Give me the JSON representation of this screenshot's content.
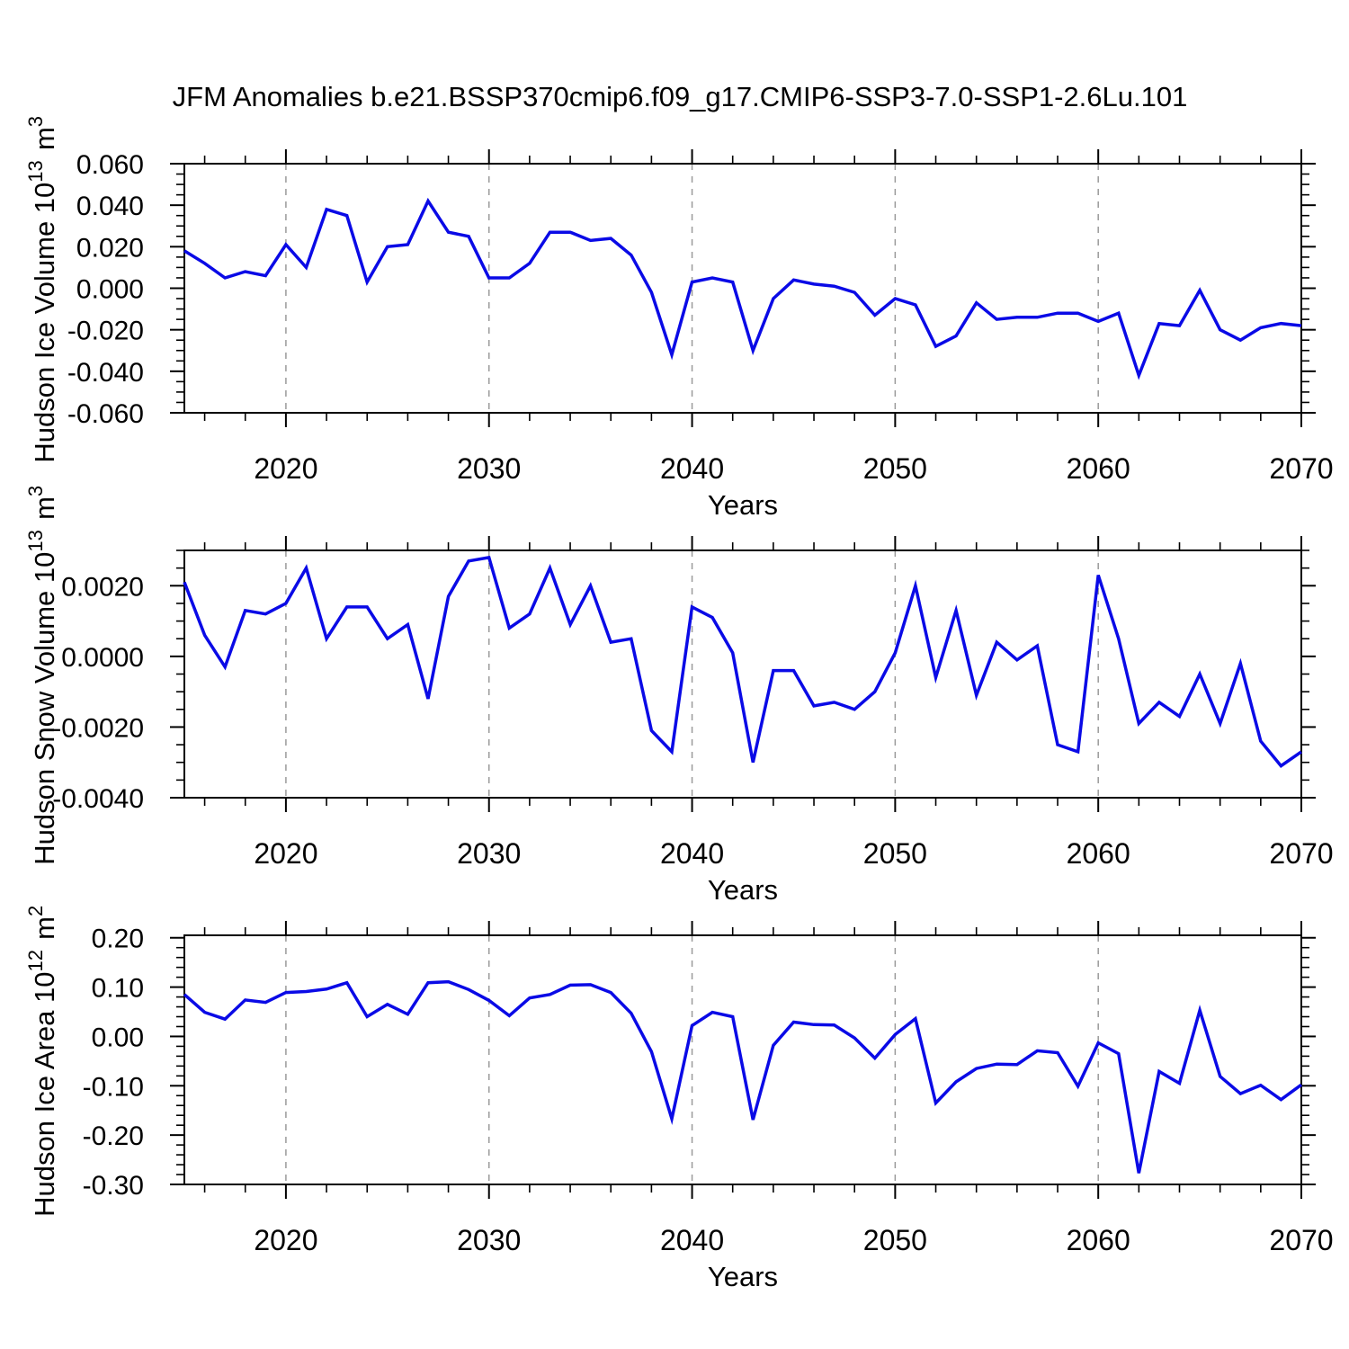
{
  "title": "JFM Anomalies b.e21.BSSP370cmip6.f09_g17.CMIP6-SSP3-7.0-SSP1-2.6Lu.101",
  "colors": {
    "line": "#0A0AE6",
    "grid": "#9a9a9a",
    "frame": "#000000",
    "background": "#ffffff"
  },
  "chart_data": {
    "type": "line",
    "x": [
      2015,
      2016,
      2017,
      2018,
      2019,
      2020,
      2021,
      2022,
      2023,
      2024,
      2025,
      2026,
      2027,
      2028,
      2029,
      2030,
      2031,
      2032,
      2033,
      2034,
      2035,
      2036,
      2037,
      2038,
      2039,
      2040,
      2041,
      2042,
      2043,
      2044,
      2045,
      2046,
      2047,
      2048,
      2049,
      2050,
      2051,
      2052,
      2053,
      2054,
      2055,
      2056,
      2057,
      2058,
      2059,
      2060,
      2061,
      2062,
      2063,
      2064,
      2065,
      2066,
      2067,
      2068,
      2069,
      2070
    ],
    "xlabel": "Years",
    "xlim": [
      2015,
      2070
    ],
    "xticks": [
      "2020",
      "2030",
      "2040",
      "2050",
      "2060",
      "2070"
    ],
    "xtick_years": [
      2020,
      2030,
      2040,
      2050,
      2060,
      2070
    ],
    "x_minor_step": 2,
    "grid_years": [
      2020,
      2030,
      2040,
      2050,
      2060
    ],
    "grid_style": "dashed-vertical",
    "legend": "none",
    "charts": [
      {
        "name": "hudson-ice-volume",
        "ylabel_text": "Hudson Ice Volume 10^13 m^3",
        "ylabel_parts": [
          {
            "text": "Hudson Ice Volume 10"
          },
          {
            "sup": "13"
          },
          {
            "text": " m"
          },
          {
            "sup": "3"
          }
        ],
        "ylim": [
          -0.06,
          0.06
        ],
        "y_minor_step": 0.005,
        "yticks": [
          {
            "v": 0.06,
            "label": "0.060"
          },
          {
            "v": 0.04,
            "label": "0.040"
          },
          {
            "v": 0.02,
            "label": "0.020"
          },
          {
            "v": 0.0,
            "label": "0.000"
          },
          {
            "v": -0.02,
            "label": "-0.020"
          },
          {
            "v": -0.04,
            "label": "-0.040"
          },
          {
            "v": -0.06,
            "label": "-0.060"
          }
        ],
        "values": [
          0.018,
          0.012,
          0.005,
          0.008,
          0.006,
          0.021,
          0.01,
          0.038,
          0.035,
          0.003,
          0.02,
          0.021,
          0.042,
          0.027,
          0.025,
          0.005,
          0.005,
          0.012,
          0.027,
          0.027,
          0.023,
          0.024,
          0.016,
          -0.002,
          -0.032,
          0.003,
          0.005,
          0.003,
          -0.03,
          -0.005,
          0.004,
          0.002,
          0.001,
          -0.002,
          -0.013,
          -0.005,
          -0.008,
          -0.028,
          -0.023,
          -0.007,
          -0.015,
          -0.014,
          -0.014,
          -0.012,
          -0.012,
          -0.016,
          -0.012,
          -0.042,
          -0.017,
          -0.018,
          -0.001,
          -0.02,
          -0.025,
          -0.019,
          -0.017,
          -0.018
        ]
      },
      {
        "name": "hudson-snow-volume",
        "ylabel_text": "Hudson Snow Volume 10^13 m^3",
        "ylabel_parts": [
          {
            "text": "Hudson Snow Volume 10"
          },
          {
            "sup": "13"
          },
          {
            "text": " m"
          },
          {
            "sup": "3"
          }
        ],
        "ylim": [
          -0.004,
          0.003
        ],
        "y_minor_step": 0.0005,
        "yticks": [
          {
            "v": 0.002,
            "label": "0.0020"
          },
          {
            "v": 0.0,
            "label": "0.0000"
          },
          {
            "v": -0.002,
            "label": "-0.0020"
          },
          {
            "v": -0.004,
            "label": "-0.0040"
          }
        ],
        "values": [
          0.0021,
          0.0006,
          -0.0003,
          0.0013,
          0.0012,
          0.0015,
          0.0025,
          0.0005,
          0.0014,
          0.0014,
          0.0005,
          0.0009,
          -0.0012,
          0.0017,
          0.0027,
          0.0028,
          0.0008,
          0.0012,
          0.0025,
          0.0009,
          0.002,
          0.0004,
          0.0005,
          -0.0021,
          -0.0027,
          0.0014,
          0.0011,
          0.0001,
          -0.003,
          -0.0004,
          -0.0004,
          -0.0014,
          -0.0013,
          -0.0015,
          -0.001,
          0.0001,
          0.002,
          -0.0006,
          0.0013,
          -0.0011,
          0.0004,
          -0.0001,
          0.0003,
          -0.0025,
          -0.0027,
          0.0023,
          0.0005,
          -0.0019,
          -0.0013,
          -0.0017,
          -0.0005,
          -0.0019,
          -0.0002,
          -0.0024,
          -0.0031,
          -0.0027
        ]
      },
      {
        "name": "hudson-ice-area",
        "ylabel_text": "Hudson Ice Area 10^12 m^2",
        "ylabel_parts": [
          {
            "text": "Hudson Ice Area 10"
          },
          {
            "sup": "12"
          },
          {
            "text": " m"
          },
          {
            "sup": "2"
          }
        ],
        "ylim": [
          -0.3,
          0.205
        ],
        "y_minor_step": 0.02,
        "yticks": [
          {
            "v": 0.2,
            "label": "0.20"
          },
          {
            "v": 0.1,
            "label": "0.10"
          },
          {
            "v": 0.0,
            "label": "0.00"
          },
          {
            "v": -0.1,
            "label": "-0.10"
          },
          {
            "v": -0.2,
            "label": "-0.20"
          },
          {
            "v": -0.3,
            "label": "-0.30"
          }
        ],
        "values": [
          0.085,
          0.049,
          0.035,
          0.074,
          0.069,
          0.089,
          0.091,
          0.096,
          0.109,
          0.04,
          0.065,
          0.045,
          0.109,
          0.111,
          0.095,
          0.073,
          0.042,
          0.078,
          0.085,
          0.104,
          0.105,
          0.089,
          0.047,
          -0.031,
          -0.167,
          0.022,
          0.049,
          0.04,
          -0.169,
          -0.018,
          0.029,
          0.024,
          0.023,
          -0.003,
          -0.044,
          0.004,
          0.036,
          -0.135,
          -0.092,
          -0.065,
          -0.056,
          -0.057,
          -0.029,
          -0.033,
          -0.101,
          -0.013,
          -0.035,
          -0.277,
          -0.071,
          -0.095,
          0.053,
          -0.081,
          -0.116,
          -0.099,
          -0.128,
          -0.098
        ]
      }
    ]
  }
}
